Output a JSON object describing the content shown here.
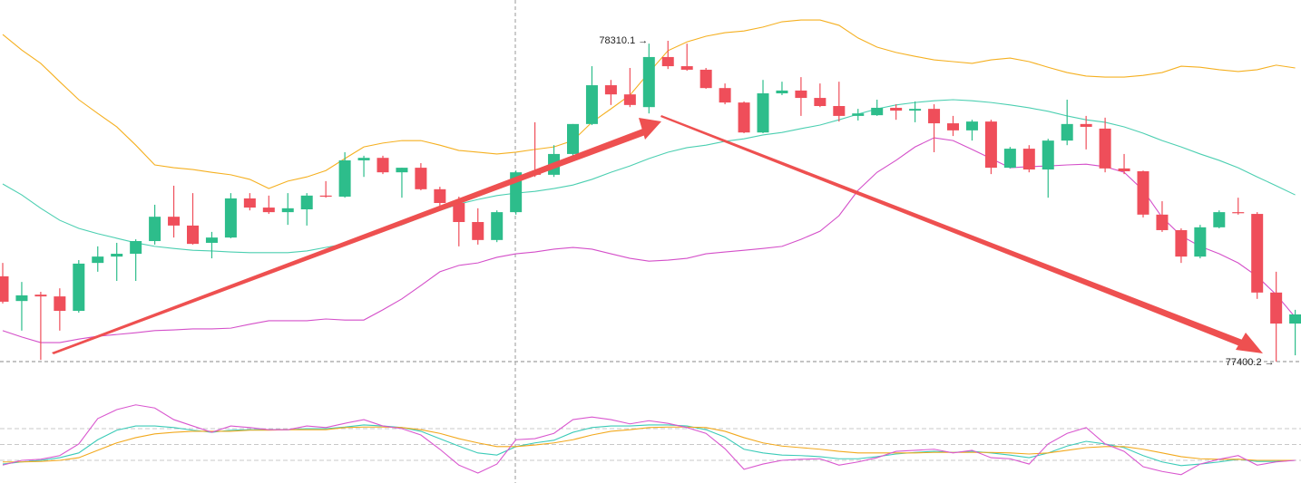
{
  "chart_data": {
    "type": "candlestick",
    "up_color": "#2dbd8b",
    "down_color": "#ef4e5a",
    "high_label": "78310.1 →",
    "low_label": "77400.2 →",
    "candles": {
      "open": [
        77642,
        77572,
        77590,
        77585,
        77544,
        77680,
        77698,
        77706,
        77742,
        77811,
        77786,
        77737,
        77752,
        77863,
        77837,
        77824,
        77832,
        77871,
        77868,
        77971,
        77978,
        77937,
        77950,
        77889,
        77850,
        77796,
        77745,
        77824,
        77937,
        77930,
        77989,
        78074,
        78184,
        78158,
        78122,
        78264,
        78238,
        78228,
        78176,
        78135,
        78050,
        78161,
        78169,
        78148,
        78125,
        78097,
        78099,
        78120,
        78112,
        78117,
        78076,
        78056,
        78081,
        77950,
        78004,
        77945,
        78027,
        78074,
        78061,
        77948,
        77940,
        77817,
        77773,
        77698,
        77781,
        77824,
        77819,
        77596,
        77508
      ],
      "high": [
        77680,
        77626,
        77598,
        77608,
        77688,
        77727,
        77737,
        77747,
        77845,
        77899,
        77878,
        77768,
        77878,
        77878,
        77871,
        77878,
        77878,
        77912,
        77994,
        77984,
        77984,
        77950,
        77963,
        77896,
        77868,
        77835,
        77829,
        77942,
        78079,
        78014,
        78074,
        78238,
        78199,
        78233,
        78302,
        78310.1,
        78302,
        78233,
        78189,
        78138,
        78199,
        78194,
        78207,
        78189,
        78194,
        78117,
        78143,
        78130,
        78138,
        78130,
        78097,
        78086,
        78086,
        78009,
        78014,
        78032,
        78143,
        78097,
        78092,
        77989,
        77942,
        77855,
        77778,
        77788,
        77829,
        77865,
        77824,
        77655,
        77547
      ],
      "low": [
        77565,
        77488,
        77405,
        77488,
        77539,
        77655,
        77629,
        77629,
        77732,
        77752,
        77732,
        77693,
        77750,
        77829,
        77819,
        77788,
        77786,
        77865,
        77865,
        77924,
        77932,
        77865,
        77886,
        77842,
        77727,
        77732,
        77739,
        77817,
        77924,
        77924,
        77984,
        78071,
        78128,
        78122,
        78104,
        78230,
        78225,
        78174,
        78130,
        78048,
        78048,
        78156,
        78097,
        78122,
        78081,
        78084,
        78097,
        78086,
        78079,
        77994,
        78040,
        78027,
        77932,
        77948,
        77937,
        77865,
        78014,
        78002,
        77937,
        77932,
        77809,
        77768,
        77680,
        77693,
        77778,
        77817,
        77578,
        77400.2,
        77418
      ],
      "close": [
        77570,
        77588,
        77585,
        77544,
        77678,
        77698,
        77706,
        77742,
        77811,
        77786,
        77734,
        77752,
        77863,
        77837,
        77824,
        77835,
        77871,
        77868,
        77971,
        77978,
        77937,
        77950,
        77889,
        77850,
        77796,
        77745,
        77824,
        77937,
        77930,
        77989,
        78074,
        78184,
        78158,
        78128,
        78264,
        78238,
        78228,
        78176,
        78135,
        78050,
        78161,
        78169,
        78148,
        78125,
        78097,
        78104,
        78120,
        78112,
        78117,
        78076,
        78056,
        78081,
        77950,
        78004,
        77945,
        78027,
        78074,
        78066,
        77948,
        77940,
        77817,
        77773,
        77698,
        77781,
        77824,
        77822,
        77596,
        77508,
        77534
      ]
    },
    "overlays": [
      {
        "color": "#f5b021",
        "values": [
          78328,
          78284,
          78246,
          78194,
          78143,
          78104,
          78066,
          78014,
          77958,
          77950,
          77945,
          77937,
          77930,
          77917,
          77891,
          77912,
          77924,
          77942,
          77976,
          78009,
          78020,
          78027,
          78027,
          78014,
          77999,
          77994,
          77989,
          77994,
          78002,
          78009,
          78027,
          78079,
          78117,
          78156,
          78220,
          78282,
          78307,
          78323,
          78333,
          78338,
          78349,
          78364,
          78369,
          78369,
          78354,
          78318,
          78292,
          78277,
          78266,
          78256,
          78251,
          78246,
          78256,
          78261,
          78251,
          78235,
          78220,
          78210,
          78207,
          78207,
          78212,
          78220,
          78238,
          78235,
          78228,
          78223,
          78228,
          78241,
          78233
        ]
      },
      {
        "color": "#4ccfb1",
        "values": [
          77904,
          77873,
          77835,
          77801,
          77778,
          77763,
          77750,
          77737,
          77727,
          77721,
          77716,
          77714,
          77711,
          77709,
          77709,
          77709,
          77714,
          77724,
          77734,
          77752,
          77770,
          77788,
          77809,
          77829,
          77847,
          77860,
          77871,
          77878,
          77883,
          77891,
          77901,
          77917,
          77937,
          77955,
          77976,
          77994,
          78007,
          78014,
          78025,
          78032,
          78043,
          78050,
          78061,
          78071,
          78086,
          78102,
          78117,
          78128,
          78135,
          78140,
          78143,
          78140,
          78135,
          78128,
          78120,
          78110,
          78097,
          78086,
          78079,
          78066,
          78048,
          78027,
          78009,
          77989,
          77971,
          77950,
          77924,
          77899,
          77873
        ]
      },
      {
        "color": "#d44fc9",
        "values": [
          77488,
          77470,
          77454,
          77454,
          77464,
          77472,
          77477,
          77482,
          77488,
          77490,
          77493,
          77493,
          77495,
          77506,
          77516,
          77516,
          77516,
          77521,
          77518,
          77518,
          77547,
          77578,
          77616,
          77655,
          77673,
          77680,
          77696,
          77706,
          77711,
          77719,
          77724,
          77719,
          77706,
          77693,
          77685,
          77688,
          77693,
          77706,
          77711,
          77716,
          77721,
          77727,
          77747,
          77770,
          77814,
          77886,
          77937,
          77971,
          78009,
          78035,
          78027,
          78002,
          77976,
          77950,
          77953,
          77955,
          77958,
          77960,
          77953,
          77937,
          77886,
          77809,
          77757,
          77727,
          77706,
          77680,
          77642,
          77590,
          77526
        ]
      }
    ],
    "indicator": {
      "type": "line",
      "levels": [
        80,
        50,
        20
      ],
      "series": [
        {
          "color": "#3ccbb8",
          "values": [
            13,
            17,
            20,
            25,
            34,
            59,
            77,
            85,
            85,
            82,
            77,
            73,
            77,
            78,
            78,
            78,
            80,
            80,
            83,
            87,
            85,
            82,
            75,
            61,
            47,
            34,
            30,
            46,
            53,
            58,
            73,
            82,
            85,
            85,
            87,
            87,
            85,
            78,
            64,
            41,
            34,
            30,
            29,
            27,
            23,
            23,
            27,
            32,
            35,
            37,
            35,
            37,
            34,
            30,
            25,
            34,
            47,
            56,
            51,
            44,
            29,
            17,
            10,
            13,
            17,
            22,
            18,
            18,
            20
          ]
        },
        {
          "color": "#f2a91e",
          "values": [
            17,
            17,
            18,
            20,
            25,
            39,
            53,
            63,
            70,
            73,
            75,
            75,
            75,
            77,
            77,
            78,
            78,
            78,
            82,
            83,
            83,
            82,
            78,
            71,
            61,
            53,
            46,
            46,
            49,
            53,
            59,
            68,
            75,
            78,
            82,
            83,
            83,
            82,
            75,
            63,
            53,
            47,
            44,
            41,
            37,
            34,
            34,
            34,
            34,
            35,
            35,
            35,
            35,
            34,
            32,
            34,
            39,
            44,
            46,
            46,
            41,
            34,
            27,
            23,
            22,
            22,
            20,
            20,
            20
          ]
        },
        {
          "color": "#d957cf",
          "values": [
            11,
            20,
            22,
            29,
            51,
            99,
            116,
            125,
            119,
            97,
            85,
            73,
            85,
            82,
            78,
            78,
            85,
            82,
            90,
            97,
            85,
            80,
            68,
            41,
            11,
            -4,
            13,
            59,
            61,
            71,
            97,
            102,
            97,
            89,
            95,
            90,
            82,
            71,
            42,
            3,
            13,
            20,
            22,
            23,
            11,
            17,
            25,
            37,
            39,
            41,
            34,
            39,
            25,
            23,
            13,
            51,
            71,
            82,
            51,
            37,
            8,
            -1,
            -7,
            13,
            22,
            29,
            11,
            17,
            20
          ]
        }
      ]
    }
  }
}
